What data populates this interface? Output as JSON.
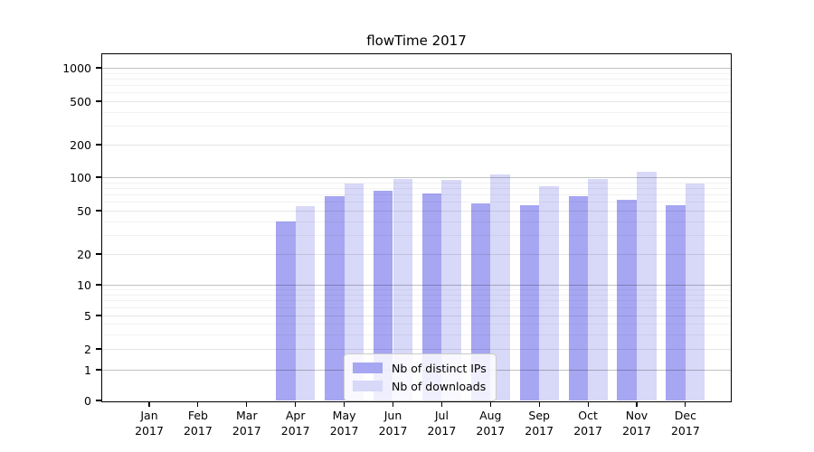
{
  "title": "flowTime 2017",
  "legend": {
    "items": [
      {
        "label": "Nb of distinct IPs",
        "color": "#a6a6f2"
      },
      {
        "label": "Nb of downloads",
        "color": "#d8d8f8"
      }
    ]
  },
  "axes": {
    "x_tick_year": "2017",
    "ytick_labels": [
      "0",
      "1",
      "2",
      "5",
      "10",
      "20",
      "50",
      "100",
      "200",
      "500",
      "1000"
    ]
  },
  "chart_data": {
    "type": "bar",
    "title": "flowTime 2017",
    "categories": [
      "Jan",
      "Feb",
      "Mar",
      "Apr",
      "May",
      "Jun",
      "Jul",
      "Aug",
      "Sep",
      "Oct",
      "Nov",
      "Dec"
    ],
    "categories_year": "2017",
    "series": [
      {
        "name": "Nb of distinct IPs",
        "color": "#a6a6f2",
        "values": [
          null,
          null,
          null,
          40,
          68,
          75,
          72,
          58,
          56,
          67,
          63,
          56
        ]
      },
      {
        "name": "Nb of downloads",
        "color": "#d8d8f8",
        "values": [
          null,
          null,
          null,
          55,
          88,
          97,
          95,
          105,
          83,
          96,
          112,
          87
        ]
      }
    ],
    "yscale": "symlog",
    "yticks": [
      0,
      1,
      2,
      5,
      10,
      20,
      50,
      100,
      200,
      500,
      1000
    ],
    "yticks_minor": [
      3,
      4,
      6,
      7,
      8,
      9,
      30,
      40,
      60,
      70,
      80,
      90,
      300,
      400,
      600,
      700,
      800,
      900
    ],
    "grid": true,
    "grid_over_bars": true,
    "legend_position": "inside-lower-center"
  }
}
